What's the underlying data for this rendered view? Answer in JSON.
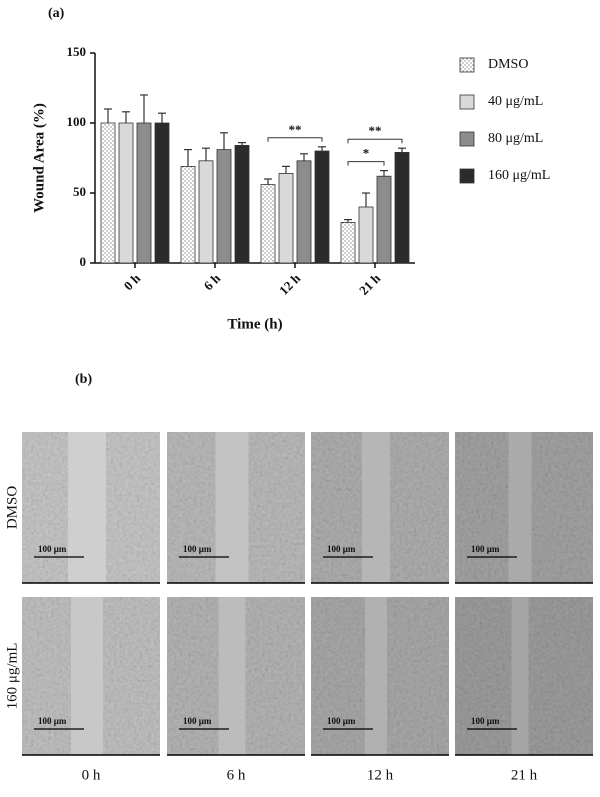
{
  "panel_a_label": "(a)",
  "panel_b_label": "(b)",
  "chart_data": {
    "type": "bar",
    "ylabel": "Wound Area (%)",
    "xlabel": "Time (h)",
    "categories": [
      "0 h",
      "6 h",
      "12 h",
      "21 h"
    ],
    "ylim": [
      0,
      150
    ],
    "yticks": [
      0,
      50,
      100,
      150
    ],
    "grid": false,
    "legend": "right",
    "series": [
      {
        "name": "DMSO",
        "color": "#ffffff",
        "pattern": "dots",
        "values": [
          100,
          69,
          56,
          29
        ],
        "errors": [
          10,
          12,
          4,
          2
        ]
      },
      {
        "name": "40 μg/mL",
        "color": "#d9d9d9",
        "values": [
          100,
          73,
          64,
          40
        ],
        "errors": [
          8,
          9,
          5,
          10
        ]
      },
      {
        "name": "80 μg/mL",
        "color": "#8c8c8c",
        "values": [
          100,
          81,
          73,
          62
        ],
        "errors": [
          20,
          12,
          5,
          4
        ]
      },
      {
        "name": "160 μg/mL",
        "color": "#2b2b2b",
        "values": [
          100,
          84,
          80,
          79
        ],
        "errors": [
          7,
          2,
          3,
          3
        ]
      }
    ],
    "annotations": [
      {
        "text": "**",
        "category": "12 h",
        "between": [
          "DMSO",
          "160 μg/mL"
        ]
      },
      {
        "text": "*",
        "category": "21 h",
        "between": [
          "DMSO",
          "80 μg/mL"
        ]
      },
      {
        "text": "**",
        "category": "21 h",
        "between": [
          "DMSO",
          "160 μg/mL"
        ]
      }
    ]
  },
  "micrographs": {
    "rows": [
      "DMSO",
      "160 μg/mL"
    ],
    "columns": [
      "0 h",
      "6 h",
      "12 h",
      "21 h"
    ],
    "scale_bar": "100 μm"
  }
}
